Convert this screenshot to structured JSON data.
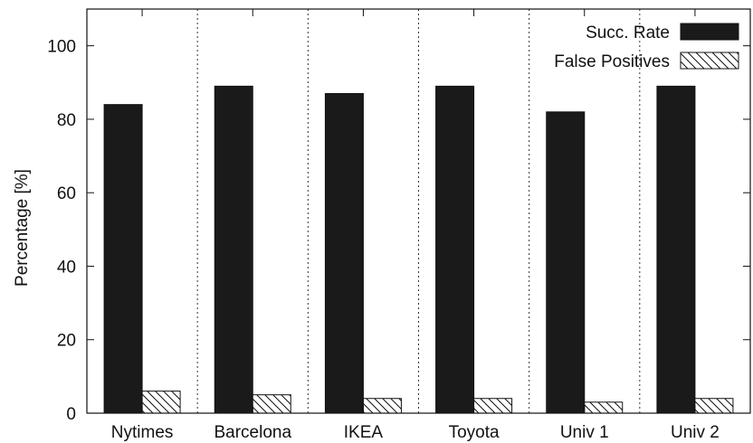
{
  "chart_data": {
    "type": "bar",
    "categories": [
      "Nytimes",
      "Barcelona",
      "IKEA",
      "Toyota",
      "Univ 1",
      "Univ 2"
    ],
    "series": [
      {
        "name": "Succ. Rate",
        "values": [
          84,
          89,
          87,
          89,
          82,
          89
        ],
        "color": "#1a1a1a",
        "pattern": "solid"
      },
      {
        "name": "False Positives",
        "values": [
          6,
          5,
          4,
          4,
          3,
          4
        ],
        "color": "#ffffff",
        "pattern": "hatched"
      }
    ],
    "xlabel": "",
    "ylabel": "Percentage [%]",
    "ylim": [
      0,
      110
    ],
    "yticks": [
      0,
      20,
      40,
      60,
      80,
      100
    ],
    "grid": false,
    "group_separators": "dashed",
    "legend": "top-right"
  }
}
